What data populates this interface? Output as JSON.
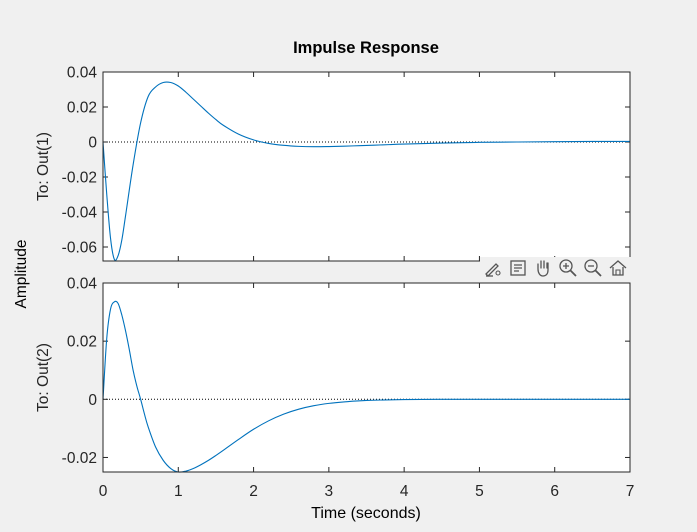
{
  "figure": {
    "title": "Impulse Response",
    "ylabel": "Amplitude",
    "xlabel": "Time (seconds)",
    "toolbar": [
      "brush-icon",
      "data-tips-icon",
      "pan-hand-icon",
      "zoom-in-icon",
      "zoom-out-icon",
      "home-icon"
    ]
  },
  "chart_data": [
    {
      "type": "line",
      "title": "Impulse Response",
      "ylabel": "To: Out(1)",
      "xlabel": "",
      "xlim": [
        0,
        7
      ],
      "ylim": [
        -0.068,
        0.04
      ],
      "yticks": [
        0.04,
        0.02,
        0,
        -0.02,
        -0.04,
        -0.06
      ],
      "ytick_labels": [
        "0.04",
        "0.02",
        "0",
        "-0.02",
        "-0.04",
        "-0.06"
      ],
      "zero_line": "dotted",
      "grid": false,
      "series": [
        {
          "color": "#0072bd",
          "x": [
            0,
            0.05,
            0.1,
            0.15,
            0.2,
            0.25,
            0.3,
            0.4,
            0.5,
            0.6,
            0.7,
            0.8,
            0.9,
            1.0,
            1.1,
            1.2,
            1.3,
            1.4,
            1.5,
            1.6,
            1.8,
            2.0,
            2.2,
            2.4,
            2.6,
            2.8,
            3.0,
            3.2,
            3.4,
            3.6,
            3.8,
            4.0,
            4.5,
            5.0,
            5.5,
            6.0,
            6.5,
            7.0
          ],
          "y": [
            0,
            -0.03,
            -0.055,
            -0.067,
            -0.065,
            -0.056,
            -0.042,
            -0.013,
            0.011,
            0.026,
            0.0315,
            0.034,
            0.034,
            0.032,
            0.0285,
            0.0245,
            0.0205,
            0.0165,
            0.0128,
            0.0095,
            0.0045,
            0.0012,
            -0.0008,
            -0.0019,
            -0.0025,
            -0.0027,
            -0.0026,
            -0.0024,
            -0.0021,
            -0.0018,
            -0.0015,
            -0.0012,
            -0.0006,
            -0.0002,
            0.0,
            0.0002,
            0.0003,
            0.0003
          ]
        }
      ]
    },
    {
      "type": "line",
      "ylabel": "To: Out(2)",
      "xlabel": "Time (seconds)",
      "xlim": [
        0,
        7
      ],
      "ylim": [
        -0.025,
        0.04
      ],
      "yticks": [
        0.04,
        0.02,
        0,
        -0.02
      ],
      "ytick_labels": [
        "0.04",
        "0.02",
        "0",
        "-0.02"
      ],
      "xticks": [
        0,
        1,
        2,
        3,
        4,
        5,
        6,
        7
      ],
      "xtick_labels": [
        "0",
        "1",
        "2",
        "3",
        "4",
        "5",
        "6",
        "7"
      ],
      "zero_line": "dotted",
      "grid": false,
      "series": [
        {
          "color": "#0072bd",
          "x": [
            0,
            0.05,
            0.1,
            0.15,
            0.2,
            0.25,
            0.3,
            0.35,
            0.4,
            0.45,
            0.5,
            0.55,
            0.6,
            0.7,
            0.8,
            0.9,
            1.0,
            1.1,
            1.2,
            1.3,
            1.4,
            1.5,
            1.6,
            1.8,
            2.0,
            2.2,
            2.4,
            2.6,
            2.8,
            3.0,
            3.2,
            3.5,
            4.0,
            4.5,
            5.0,
            5.5,
            6.0,
            7.0
          ],
          "y": [
            0,
            0.021,
            0.031,
            0.0335,
            0.033,
            0.029,
            0.0235,
            0.017,
            0.01,
            0.0045,
            0.0,
            -0.005,
            -0.0095,
            -0.0165,
            -0.021,
            -0.0238,
            -0.025,
            -0.0247,
            -0.0238,
            -0.0225,
            -0.021,
            -0.0193,
            -0.0175,
            -0.0138,
            -0.0103,
            -0.0074,
            -0.0051,
            -0.0034,
            -0.0022,
            -0.0014,
            -0.0009,
            -0.0004,
            -0.0001,
            0.0,
            0.0,
            0.0,
            0.0,
            0.0
          ]
        }
      ]
    }
  ]
}
